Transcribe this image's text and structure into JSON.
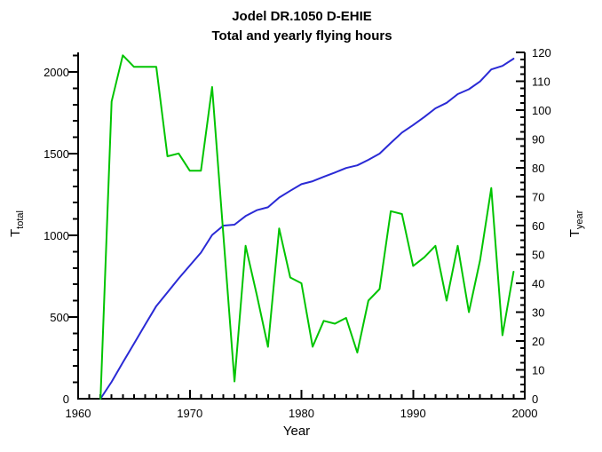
{
  "chart_data": {
    "type": "line",
    "title": "Jodel DR.1050 D-EHIE",
    "subtitle": "Total and yearly flying hours",
    "xlabel": "Year",
    "ylabel_left": "T",
    "ylabel_left_sub": "total",
    "ylabel_right": "T",
    "ylabel_right_sub": "year",
    "x_range": [
      1960,
      2000
    ],
    "y_left_range": [
      0,
      2120
    ],
    "y_left_labeled_max": 2000,
    "y_right_range": [
      0,
      120
    ],
    "x_ticks": [
      1960,
      1970,
      1980,
      1990,
      2000
    ],
    "y_left_ticks": [
      0,
      500,
      1000,
      1500,
      2000
    ],
    "y_right_ticks": [
      0,
      10,
      20,
      30,
      40,
      50,
      60,
      70,
      80,
      90,
      100,
      110,
      120
    ],
    "x_minor_step": 1,
    "y_left_minor_step": 100,
    "y_right_minor_step": 2.5,
    "grid": false,
    "legend": "none",
    "x": [
      1962,
      1963,
      1964,
      1965,
      1966,
      1967,
      1968,
      1969,
      1970,
      1971,
      1972,
      1973,
      1974,
      1975,
      1976,
      1977,
      1978,
      1979,
      1980,
      1981,
      1982,
      1983,
      1984,
      1985,
      1986,
      1987,
      1988,
      1989,
      1990,
      1991,
      1992,
      1993,
      1994,
      1995,
      1996,
      1997,
      1998,
      1999
    ],
    "series": [
      {
        "id": "t-total-line",
        "name": "T_total (total flying hours)",
        "axis": "left",
        "color": "#2A2AD5",
        "values": [
          0,
          103,
          222,
          337,
          452,
          567,
          651,
          736,
          815,
          894,
          1002,
          1059,
          1065,
          1118,
          1154,
          1172,
          1231,
          1273,
          1313,
          1331,
          1358,
          1384,
          1412,
          1428,
          1462,
          1500,
          1565,
          1629,
          1675,
          1724,
          1777,
          1811,
          1864,
          1894,
          1942,
          2015,
          2037,
          2081
        ]
      },
      {
        "id": "t-year-line",
        "name": "T_year (yearly flying hours)",
        "axis": "right",
        "color": "#00C400",
        "values": [
          0,
          103,
          119,
          115,
          115,
          115,
          84,
          85,
          79,
          79,
          108,
          57,
          6,
          53,
          36,
          18,
          59,
          42,
          40,
          18,
          27,
          26,
          28,
          16,
          34,
          38,
          65,
          64,
          46,
          49,
          53,
          34,
          53,
          30,
          48,
          73,
          22,
          44
        ]
      }
    ]
  }
}
